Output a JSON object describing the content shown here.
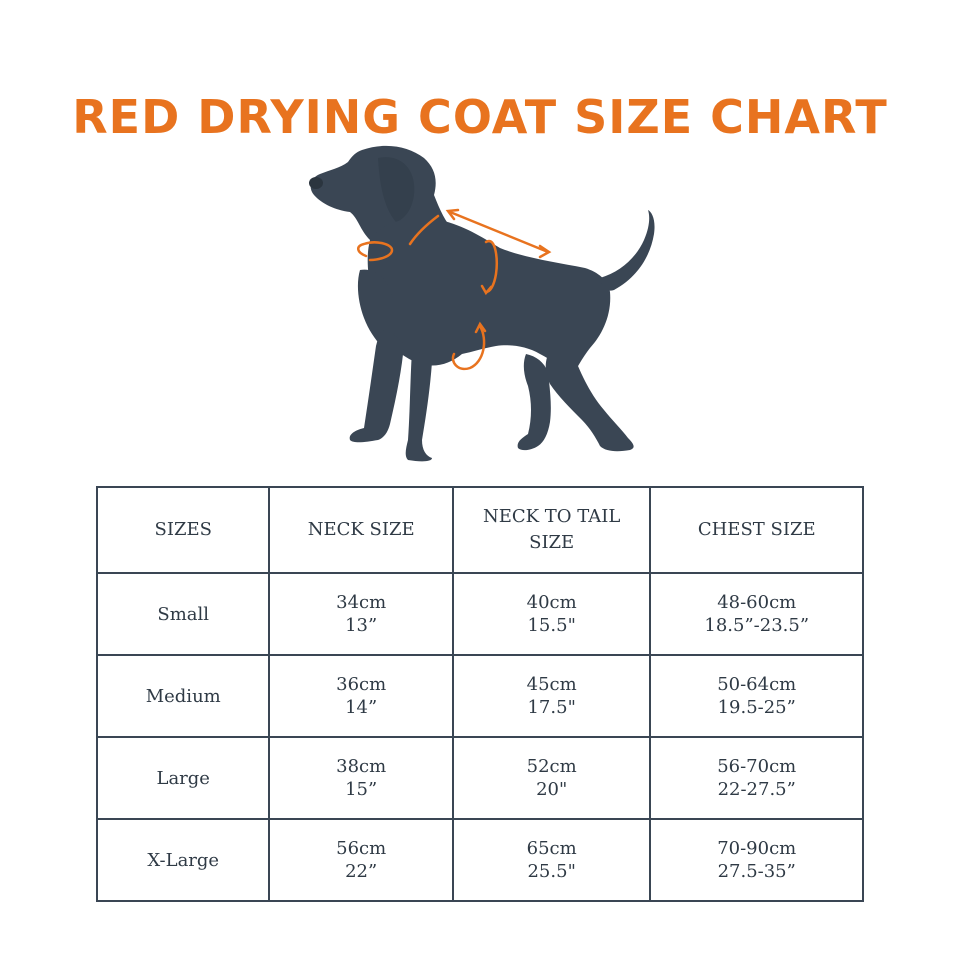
{
  "title": "RED DRYING COAT SIZE CHART",
  "colors": {
    "title": "#E8731F",
    "dog_silhouette": "#3A4654",
    "measure_arrows": "#E8731F",
    "table_border": "#3A4654",
    "table_text": "#2F3A45"
  },
  "illustration": {
    "subject": "dog-silhouette",
    "measurement_markers": [
      "neck-arrow",
      "neck-to-tail-arrow",
      "chest-arrow"
    ]
  },
  "table": {
    "headers": [
      "SIZES",
      "NECK SIZE",
      "NECK TO TAIL SIZE",
      "CHEST SIZE"
    ],
    "rows": [
      {
        "size": "Small",
        "neck_cm": "34cm",
        "neck_in": "13”",
        "length_cm": "40cm",
        "length_in": "15.5\"",
        "chest_cm": "48-60cm",
        "chest_in": "18.5”-23.5”"
      },
      {
        "size": "Medium",
        "neck_cm": "36cm",
        "neck_in": "14”",
        "length_cm": "45cm",
        "length_in": "17.5\"",
        "chest_cm": "50-64cm",
        "chest_in": "19.5-25”"
      },
      {
        "size": "Large",
        "neck_cm": "38cm",
        "neck_in": "15”",
        "length_cm": "52cm",
        "length_in": "20\"",
        "chest_cm": "56-70cm",
        "chest_in": "22-27.5”"
      },
      {
        "size": "X-Large",
        "neck_cm": "56cm",
        "neck_in": "22”",
        "length_cm": "65cm",
        "length_in": "25.5\"",
        "chest_cm": "70-90cm",
        "chest_in": "27.5-35”"
      }
    ]
  }
}
